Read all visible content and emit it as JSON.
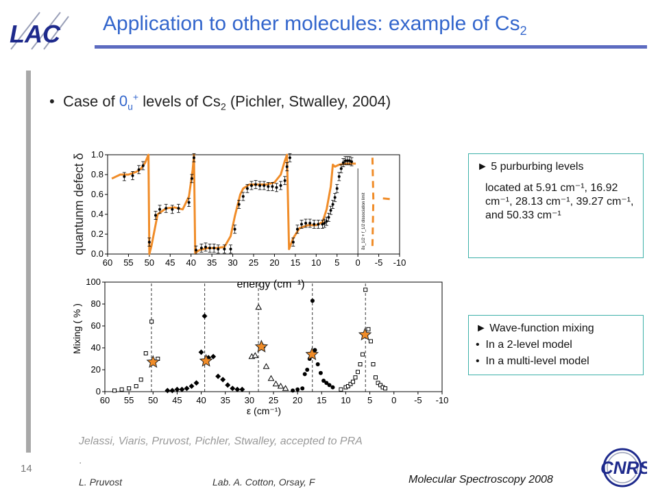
{
  "title": {
    "main": "Application to other molecules: example of Cs",
    "sub": "2"
  },
  "logos": {
    "lab": "LAC",
    "org": "CNRS"
  },
  "bullet": {
    "text1": "Case of ",
    "level_main": "0",
    "level_sub": "u",
    "level_sup": "+",
    "text2": " levels of Cs",
    "text2_sub": "2",
    "text3": " (Pichler, Stwalley, 2004)"
  },
  "box_levels": {
    "head": "► 5 purburbing levels",
    "body": "located at 5.91 cm⁻¹, 16.92 cm⁻¹, 28.13 cm⁻¹, 39.27 cm⁻¹, and 50.33 cm⁻¹"
  },
  "box_mixing": {
    "head": "► Wave-function mixing",
    "items": [
      "In a 2-level model",
      "In a multi-level model"
    ]
  },
  "citation": "Jelassi, Viaris, Pruvost, Pichler, Stwalley, accepted to PRA",
  "citation_dot": ".",
  "footer": {
    "slide_number": "14",
    "author": "L. Pruvost",
    "lab": "Lab. A. Cotton, Orsay, F",
    "conference": "Molecular Spectroscopy  2008"
  },
  "chart_data": [
    {
      "type": "line",
      "ylabel": "quantunm defect δ",
      "xlabel": "energy (cm⁻¹)",
      "xlim": [
        60,
        -10
      ],
      "ylim": [
        0,
        1.0
      ],
      "x_ticks": [
        60,
        55,
        50,
        45,
        40,
        35,
        30,
        25,
        20,
        15,
        10,
        5,
        0,
        -5,
        -10
      ],
      "y_ticks": [
        0.0,
        0.2,
        0.4,
        0.6,
        0.8,
        1.0
      ],
      "annotation": "δs_1/2 + f_1/2 dissociation limit",
      "series": [
        {
          "kind": "fit-curve",
          "x": [
            59,
            57,
            55,
            53,
            52,
            51,
            50.2,
            50.0,
            49.5,
            48,
            46,
            44,
            42,
            40.5,
            39.6,
            39.3,
            39.0,
            38,
            36,
            34,
            32,
            30.5,
            29.5,
            28.5,
            28.2,
            27.5,
            26,
            24,
            22,
            20,
            18.5,
            17.5,
            17.0,
            16.5,
            15.5,
            14,
            12,
            10,
            8.5,
            7.5,
            6.5,
            6.0,
            5.5,
            4.5,
            3,
            1.5,
            0.5
          ],
          "y": [
            0.76,
            0.8,
            0.8,
            0.83,
            0.86,
            0.92,
            1.0,
            0.0,
            0.08,
            0.4,
            0.46,
            0.47,
            0.45,
            0.58,
            0.85,
            1.0,
            0.01,
            0.04,
            0.06,
            0.06,
            0.07,
            0.18,
            0.38,
            0.55,
            0.6,
            0.66,
            0.7,
            0.7,
            0.7,
            0.72,
            0.8,
            0.94,
            1.0,
            0.05,
            0.16,
            0.26,
            0.29,
            0.29,
            0.32,
            0.45,
            0.68,
            0.9,
            0.88,
            0.9,
            0.91,
            0.91,
            0.91
          ]
        },
        {
          "kind": "data-points",
          "x": [
            56,
            54,
            52.5,
            51.5,
            50.0,
            48.5,
            47.5,
            46,
            44.5,
            43,
            40.5,
            39.8,
            39.3,
            38.8,
            37.5,
            36.5,
            35.5,
            34.5,
            33.5,
            32,
            30.5,
            29.5,
            28.5,
            27.5,
            26.5,
            25.5,
            24.5,
            23.5,
            22.5,
            21.5,
            20.5,
            19.5,
            18.5,
            17.5,
            17.0,
            16.3,
            15.5,
            14.5,
            13.5,
            12.5,
            11.5,
            10.5,
            9.5,
            8.5,
            8.0,
            7.5,
            7.0,
            6.5,
            6.0,
            5.5,
            5.0,
            4.5,
            4.0,
            3.5,
            3.0,
            2.5,
            2.0,
            1.5
          ],
          "y": [
            0.78,
            0.79,
            0.85,
            0.89,
            0.12,
            0.39,
            0.45,
            0.46,
            0.45,
            0.46,
            0.52,
            0.76,
            0.97,
            0.04,
            0.06,
            0.07,
            0.06,
            0.06,
            0.05,
            0.05,
            0.05,
            0.25,
            0.5,
            0.58,
            0.66,
            0.69,
            0.7,
            0.69,
            0.69,
            0.68,
            0.68,
            0.67,
            0.69,
            0.74,
            0.88,
            0.97,
            0.12,
            0.25,
            0.3,
            0.31,
            0.31,
            0.3,
            0.3,
            0.3,
            0.31,
            0.33,
            0.37,
            0.44,
            0.5,
            0.57,
            0.66,
            0.78,
            0.86,
            0.92,
            0.94,
            0.94,
            0.94,
            0.93
          ]
        }
      ],
      "dashed_extrapolation": [
        {
          "x": [
            -3.5,
            -3.7,
            -3.5
          ],
          "y": [
            0.97,
            0.55,
            0.08
          ]
        },
        {
          "x": [
            -6,
            -8.5
          ],
          "y": [
            0.56,
            0.55
          ]
        }
      ]
    },
    {
      "type": "scatter",
      "ylabel": "Mixing ( % )",
      "xlabel": "ε (cm⁻¹)",
      "xlim": [
        60,
        -10
      ],
      "ylim": [
        0,
        100
      ],
      "x_ticks": [
        60,
        55,
        50,
        45,
        40,
        35,
        30,
        25,
        20,
        15,
        10,
        5,
        0,
        -5,
        -10
      ],
      "y_ticks": [
        0,
        20,
        40,
        60,
        80,
        100
      ],
      "resonances": [
        50.33,
        39.27,
        28.13,
        16.92,
        5.91
      ],
      "series": [
        {
          "marker": "open-square",
          "x": [
            58,
            56.5,
            55,
            53.5,
            52.5,
            51.5,
            50.3,
            49
          ],
          "y": [
            1,
            2,
            3,
            5,
            11,
            35,
            64,
            30
          ]
        },
        {
          "marker": "filled-diamond",
          "x": [
            47,
            46,
            45,
            44,
            43,
            42,
            41,
            40,
            39.3,
            38.5,
            37.5,
            36.5,
            35.5,
            34.5,
            33.5,
            32.5,
            31.5
          ],
          "y": [
            1,
            1,
            2,
            2,
            3,
            5,
            8,
            36,
            69,
            31,
            32,
            14,
            11,
            6,
            3,
            2,
            2
          ]
        },
        {
          "marker": "open-triangle",
          "x": [
            29.5,
            28.8,
            28.1,
            27.3,
            26.5,
            25.5,
            24.5,
            23.5,
            22.5
          ],
          "y": [
            32,
            33,
            77,
            42,
            23,
            12,
            7,
            5,
            3
          ]
        },
        {
          "marker": "filled-circle",
          "x": [
            21,
            20,
            19,
            18.5,
            18,
            17.5,
            16.9,
            16.4,
            15.8,
            15.2,
            14.6,
            14,
            13.4,
            12.7
          ],
          "y": [
            1,
            2,
            3,
            16,
            20,
            30,
            83,
            38,
            25,
            17,
            10,
            8,
            6,
            4
          ]
        },
        {
          "marker": "open-square",
          "x": [
            11,
            10,
            9.5,
            9,
            8.5,
            8,
            7.5,
            7,
            6.5,
            5.91,
            5.3,
            4.8,
            4.3,
            3.8,
            3.3,
            2.8,
            2.3,
            1.8
          ],
          "y": [
            2,
            4,
            5,
            7,
            9,
            13,
            18,
            25,
            34,
            93,
            57,
            46,
            25,
            13,
            8,
            6,
            4,
            3
          ]
        },
        {
          "marker": "orange-star",
          "x": [
            50,
            39,
            27.5,
            17,
            6
          ],
          "y": [
            27,
            28,
            41,
            34,
            52
          ]
        }
      ]
    }
  ]
}
